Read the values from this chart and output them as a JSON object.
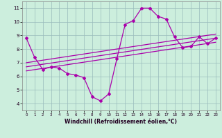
{
  "title": "",
  "xlabel": "Windchill (Refroidissement éolien,°C)",
  "xlim": [
    -0.5,
    23.5
  ],
  "ylim": [
    3.5,
    11.5
  ],
  "yticks": [
    4,
    5,
    6,
    7,
    8,
    9,
    10,
    11
  ],
  "xticks": [
    0,
    1,
    2,
    3,
    4,
    5,
    6,
    7,
    8,
    9,
    10,
    11,
    12,
    13,
    14,
    15,
    16,
    17,
    18,
    19,
    20,
    21,
    22,
    23
  ],
  "bg_color": "#cceedd",
  "line_color": "#aa00aa",
  "grid_color": "#99bbbb",
  "hours": [
    0,
    1,
    2,
    3,
    4,
    5,
    6,
    7,
    8,
    9,
    10,
    11,
    12,
    13,
    14,
    15,
    16,
    17,
    18,
    19,
    20,
    21,
    22,
    23
  ],
  "main_line": [
    8.8,
    7.4,
    6.5,
    6.7,
    6.6,
    6.2,
    6.1,
    5.9,
    4.5,
    4.2,
    4.7,
    7.3,
    9.8,
    10.1,
    11.0,
    11.0,
    10.4,
    10.2,
    8.9,
    8.1,
    8.2,
    8.9,
    8.4,
    8.8
  ],
  "reg_line1_x": [
    0,
    23
  ],
  "reg_line1_y": [
    6.7,
    8.8
  ],
  "reg_line2_x": [
    0,
    23
  ],
  "reg_line2_y": [
    7.0,
    9.1
  ],
  "reg_line3_x": [
    0,
    23
  ],
  "reg_line3_y": [
    6.4,
    8.5
  ],
  "xlabel_fontsize": 5.5,
  "tick_fontsize_x": 4.0,
  "tick_fontsize_y": 5.0
}
